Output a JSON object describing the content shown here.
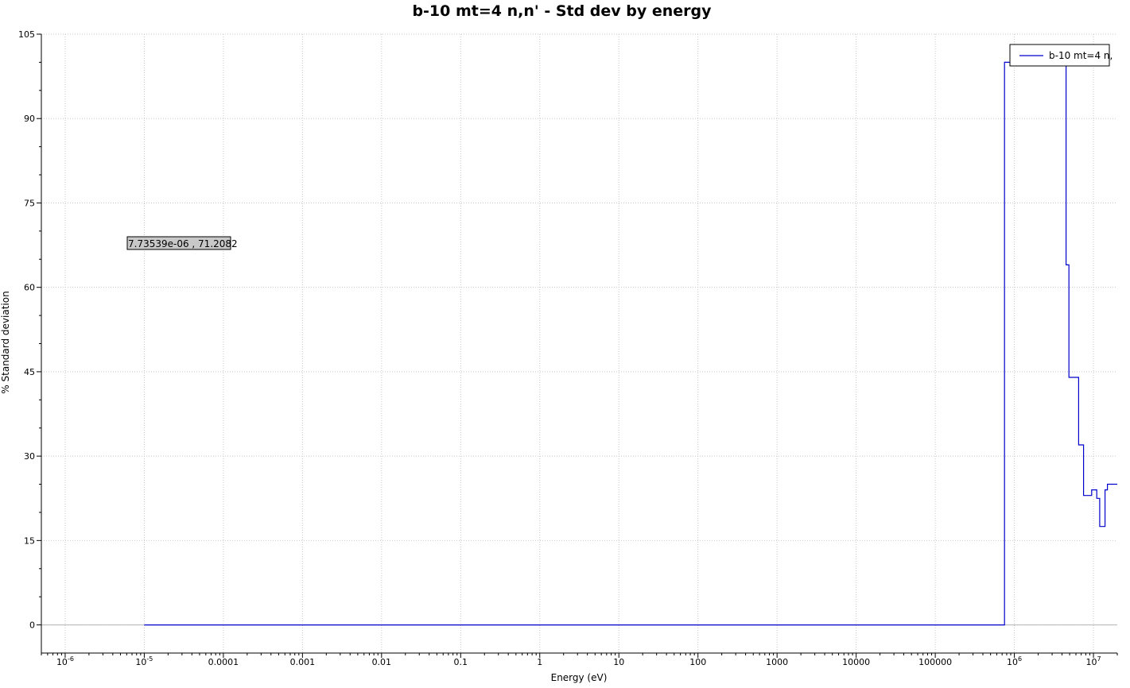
{
  "chart_data": {
    "type": "line",
    "title": "b-10 mt=4 n,n' - Std dev by energy",
    "xlabel": "Energy (eV)",
    "ylabel": "% Standard deviation",
    "x_scale": "log",
    "xlim": [
      5e-07,
      20000000
    ],
    "ylim": [
      -5,
      105
    ],
    "y_ticks": [
      0,
      15,
      30,
      45,
      60,
      75,
      90,
      105
    ],
    "x_ticks": [
      {
        "value": 1e-06,
        "base": "10",
        "exp": "-6"
      },
      {
        "value": 1e-05,
        "base": "10",
        "exp": "-5"
      },
      {
        "value": 0.0001,
        "label": "0.0001"
      },
      {
        "value": 0.001,
        "label": "0.001"
      },
      {
        "value": 0.01,
        "label": "0.01"
      },
      {
        "value": 0.1,
        "label": "0.1"
      },
      {
        "value": 1,
        "label": "1"
      },
      {
        "value": 10,
        "label": "10"
      },
      {
        "value": 100,
        "label": "100"
      },
      {
        "value": 1000,
        "label": "1000"
      },
      {
        "value": 10000,
        "label": "10000"
      },
      {
        "value": 100000,
        "label": "100000"
      },
      {
        "value": 1000000,
        "base": "10",
        "exp": "6"
      },
      {
        "value": 10000000,
        "base": "10",
        "exp": "7"
      }
    ],
    "grid": true,
    "legend_position": "top-right",
    "series": [
      {
        "name": "b-10 mt=4 n,",
        "color": "#0000cc",
        "step": true,
        "x": [
          1e-05,
          750000,
          4500000,
          4900000,
          6500000,
          7500000,
          9500000,
          11000000,
          12000000,
          14000000,
          15000000,
          16000000,
          18000000,
          20000000
        ],
        "y": [
          0,
          100,
          64,
          44,
          32,
          23,
          24,
          22.5,
          17.5,
          24,
          25,
          25,
          25,
          25
        ]
      }
    ],
    "cursor_readout": "7.73539e-06 , 71.2082"
  }
}
